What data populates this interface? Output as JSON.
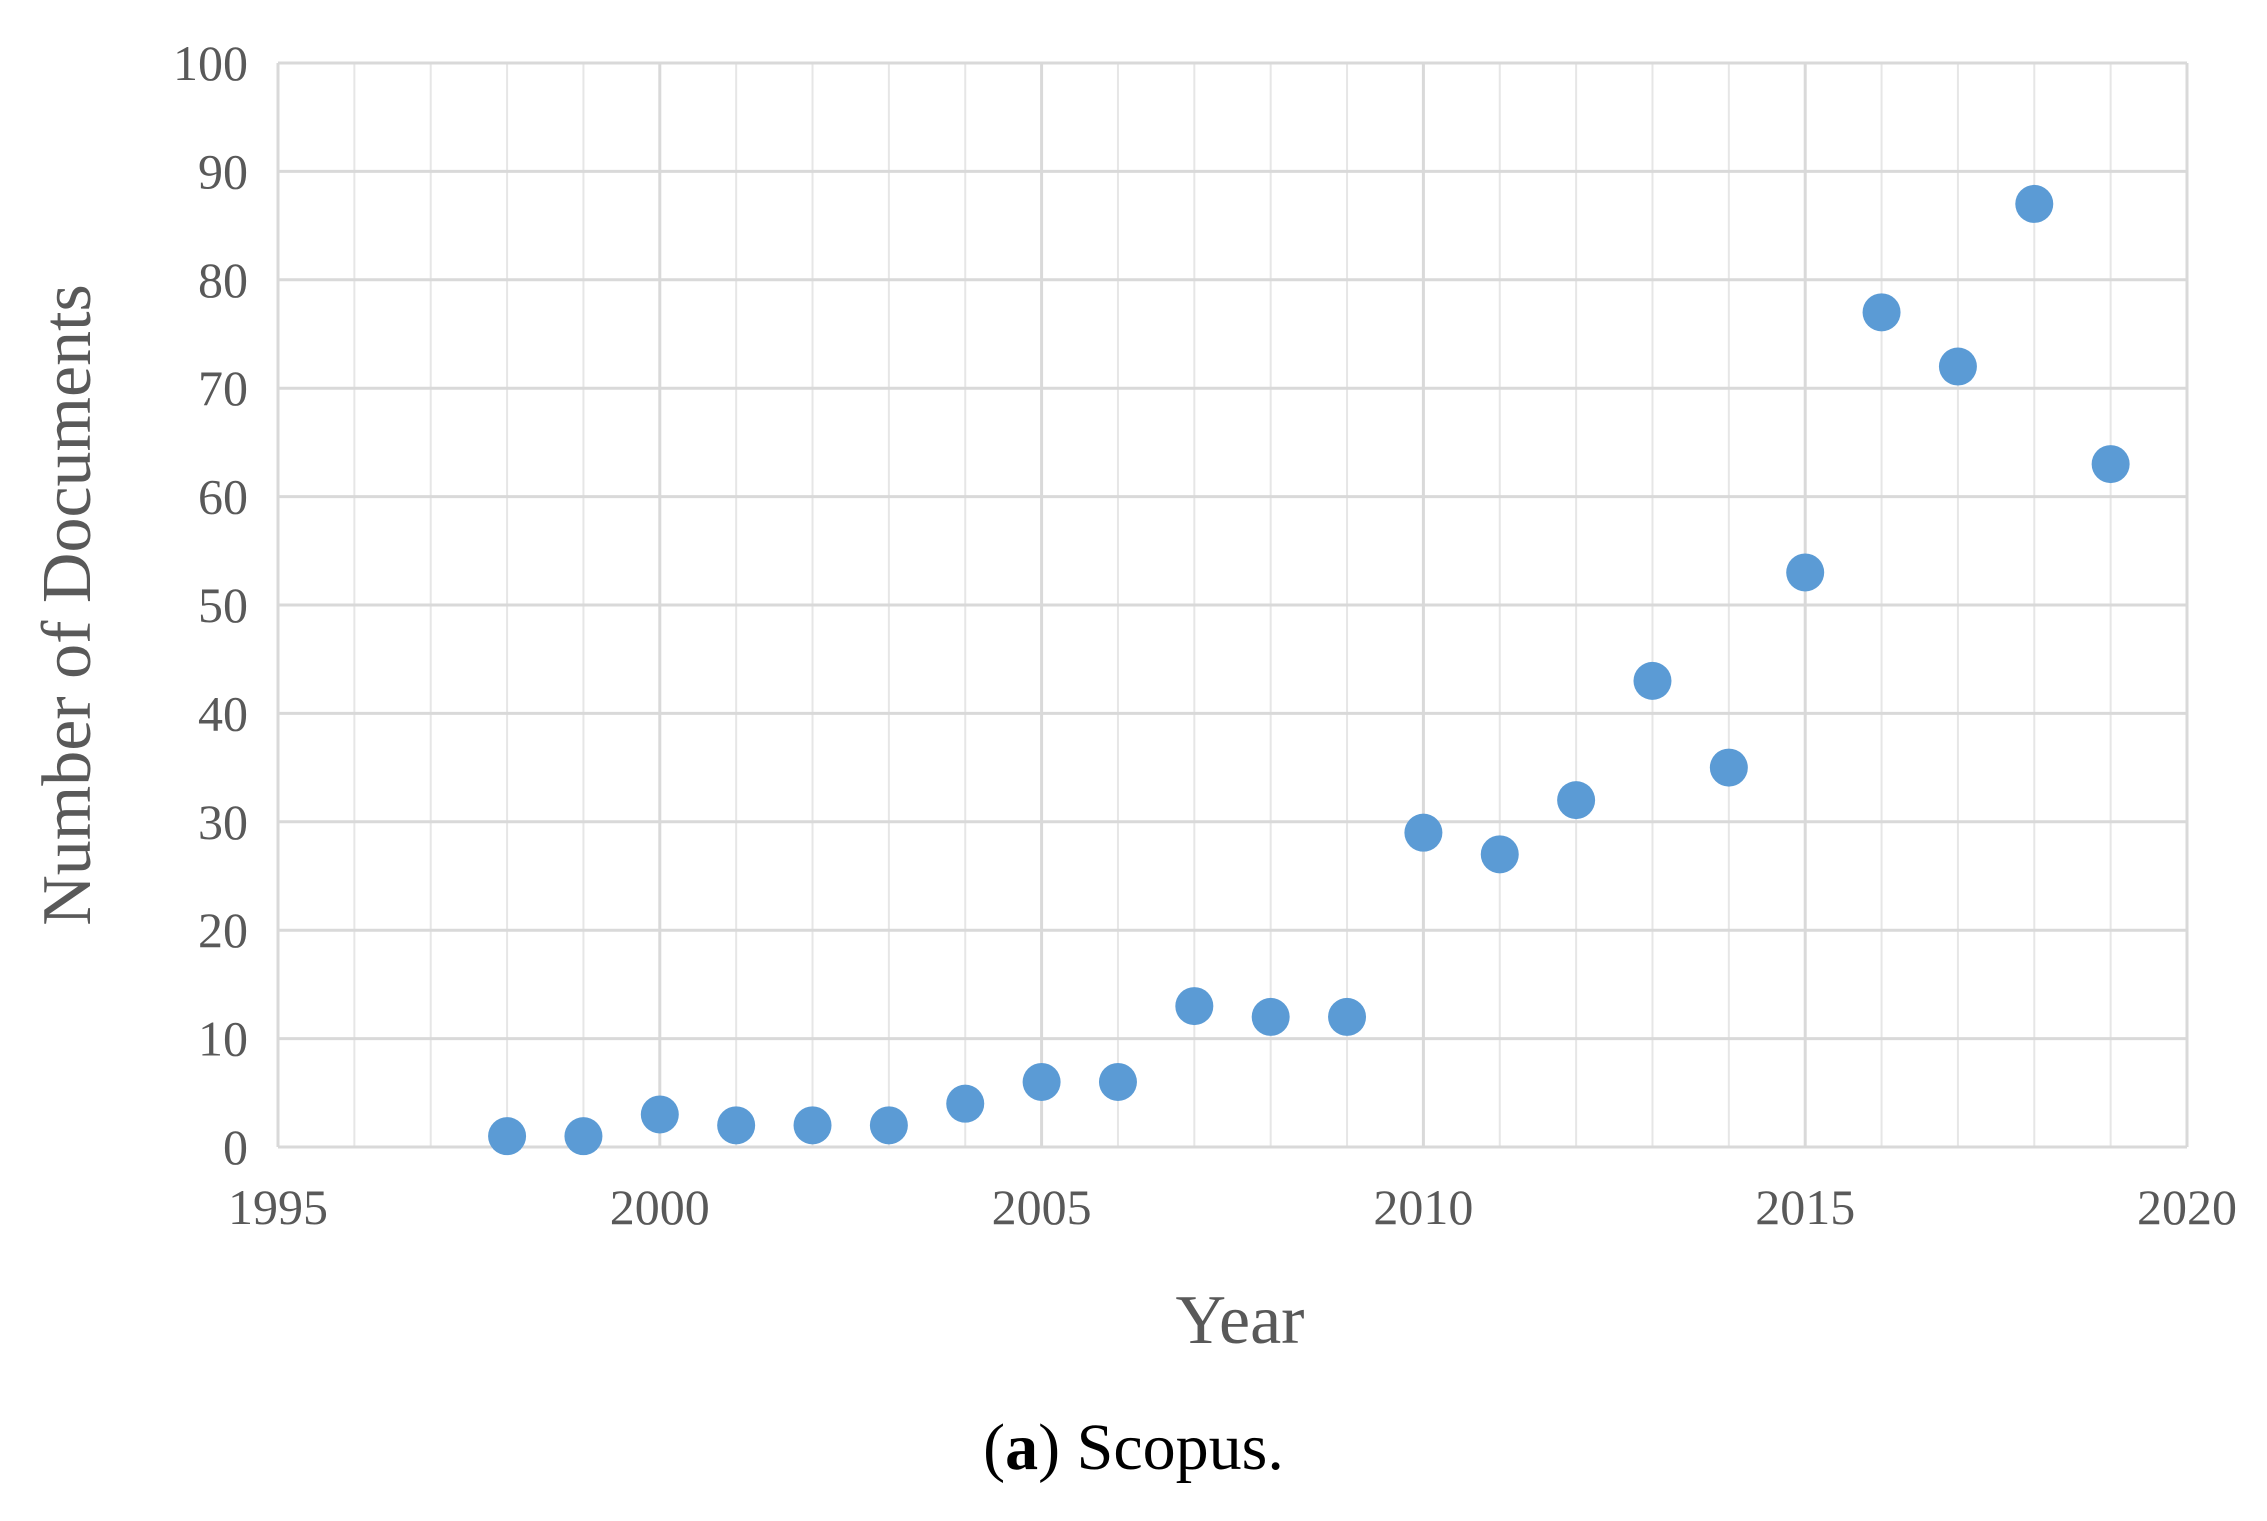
{
  "chart_data": {
    "type": "scatter",
    "title": "",
    "xlabel": "Year",
    "ylabel": "Number of Documents",
    "xlim": [
      1995,
      2020
    ],
    "ylim": [
      0,
      100
    ],
    "x_ticks": [
      "1995",
      "2000",
      "2005",
      "2010",
      "2015",
      "2020"
    ],
    "y_ticks": [
      "0",
      "10",
      "20",
      "30",
      "40",
      "50",
      "60",
      "70",
      "80",
      "90",
      "100"
    ],
    "grid": true,
    "legend": "none",
    "marker_color": "#5B9BD5",
    "series": [
      {
        "x": [
          1998,
          1999,
          2000,
          2001,
          2002,
          2003,
          2004,
          2005,
          2006,
          2007,
          2008,
          2009,
          2010,
          2011,
          2012,
          2013,
          2014,
          2015,
          2016,
          2017,
          2018,
          2019
        ],
        "y": [
          1,
          1,
          3,
          2,
          2,
          2,
          4,
          6,
          6,
          13,
          12,
          12,
          29,
          27,
          32,
          43,
          35,
          53,
          77,
          72,
          87,
          63
        ]
      }
    ]
  },
  "caption": {
    "label": "a",
    "text": "Scopus."
  },
  "colors": {
    "grid": "#D9D9D9",
    "text": "#595959",
    "marker": "#5B9BD5"
  }
}
